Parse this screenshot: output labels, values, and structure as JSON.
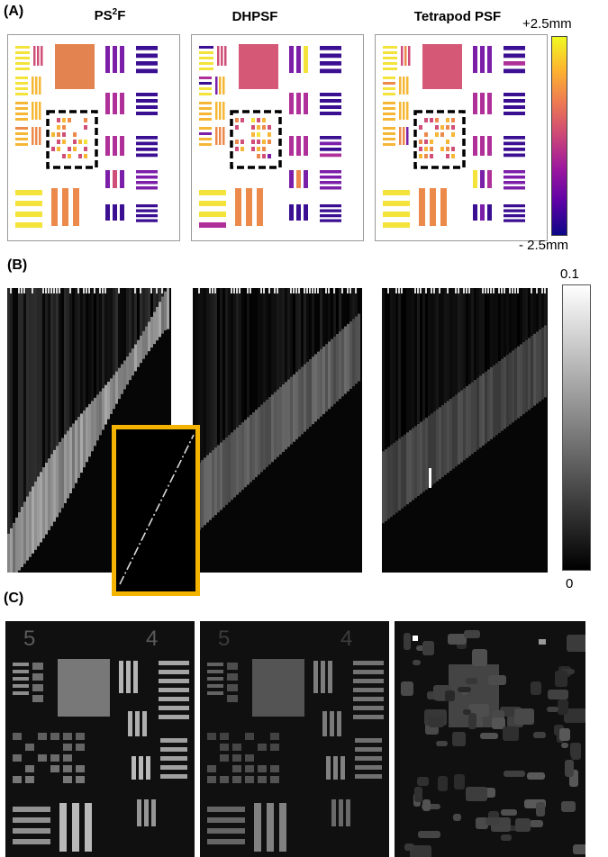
{
  "panels": {
    "a": {
      "label": "(A)"
    },
    "b": {
      "label": "(B)"
    },
    "c": {
      "label": "(C)"
    }
  },
  "columns": {
    "ps2f": {
      "main": "PS",
      "sup": "2",
      "suffix": "F"
    },
    "dhpsf": {
      "title": "DHPSF"
    },
    "tetrapod": {
      "title": "Tetrapod PSF"
    }
  },
  "colorbars": {
    "depth": {
      "top_label": "+2.5mm",
      "bottom_label": "- 2.5mm",
      "cmap": "plasma"
    },
    "error": {
      "top_label": "0.1",
      "bottom_label": "0",
      "cmap": "gray"
    }
  },
  "c_digits": {
    "left": "5",
    "right": "4"
  },
  "colors": {
    "highlight_box": "#f5b301",
    "roi_box": "#000000"
  }
}
